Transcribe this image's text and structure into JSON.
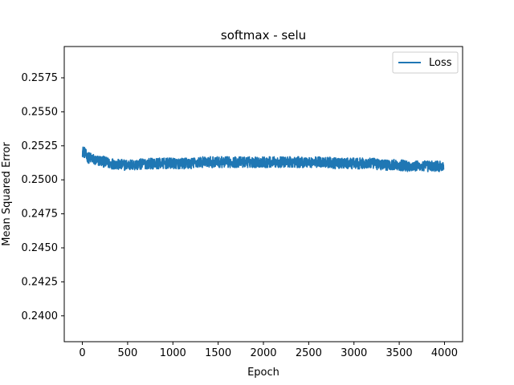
{
  "chart_data": {
    "type": "line",
    "title": "softmax - selu",
    "xlabel": "Epoch",
    "ylabel": "Mean Squared Error",
    "xlim": [
      -200,
      4200
    ],
    "ylim": [
      0.2381,
      0.2598
    ],
    "xticks": [
      0,
      500,
      1000,
      1500,
      2000,
      2500,
      3000,
      3500,
      4000
    ],
    "xtick_labels": [
      "0",
      "500",
      "1000",
      "1500",
      "2000",
      "2500",
      "3000",
      "3500",
      "4000"
    ],
    "yticks": [
      0.24,
      0.2425,
      0.245,
      0.2475,
      0.25,
      0.2525,
      0.255,
      0.2575
    ],
    "ytick_labels": [
      "0.2400",
      "0.2425",
      "0.2450",
      "0.2475",
      "0.2500",
      "0.2525",
      "0.2550",
      "0.2575"
    ],
    "grid": false,
    "legend_position": "top-right",
    "series": [
      {
        "name": "Loss",
        "color": "#1f77b4",
        "points": [
          [
            0,
            0.2521
          ],
          [
            25,
            0.252
          ],
          [
            50,
            0.2517
          ],
          [
            75,
            0.2516
          ],
          [
            100,
            0.2516
          ],
          [
            150,
            0.2514
          ],
          [
            200,
            0.2514
          ],
          [
            250,
            0.2513
          ],
          [
            300,
            0.2512
          ],
          [
            350,
            0.2512
          ],
          [
            400,
            0.2511
          ],
          [
            500,
            0.2511
          ],
          [
            600,
            0.2511
          ],
          [
            700,
            0.2512
          ],
          [
            800,
            0.2512
          ],
          [
            900,
            0.2512
          ],
          [
            1000,
            0.2512
          ],
          [
            1100,
            0.2512
          ],
          [
            1200,
            0.2512
          ],
          [
            1300,
            0.2513
          ],
          [
            1400,
            0.2513
          ],
          [
            1500,
            0.2513
          ],
          [
            1600,
            0.2513
          ],
          [
            1700,
            0.2513
          ],
          [
            1800,
            0.2513
          ],
          [
            1900,
            0.2513
          ],
          [
            2000,
            0.2513
          ],
          [
            2100,
            0.2513
          ],
          [
            2200,
            0.2513
          ],
          [
            2300,
            0.2513
          ],
          [
            2400,
            0.2513
          ],
          [
            2500,
            0.2513
          ],
          [
            2600,
            0.2513
          ],
          [
            2700,
            0.2513
          ],
          [
            2800,
            0.2512
          ],
          [
            2900,
            0.2512
          ],
          [
            3000,
            0.2512
          ],
          [
            3100,
            0.2512
          ],
          [
            3200,
            0.2512
          ],
          [
            3300,
            0.2511
          ],
          [
            3400,
            0.2511
          ],
          [
            3500,
            0.2511
          ],
          [
            3600,
            0.251
          ],
          [
            3700,
            0.251
          ],
          [
            3800,
            0.251
          ],
          [
            3900,
            0.251
          ],
          [
            3990,
            0.251
          ]
        ],
        "noise_amplitude": 0.0004
      }
    ]
  }
}
